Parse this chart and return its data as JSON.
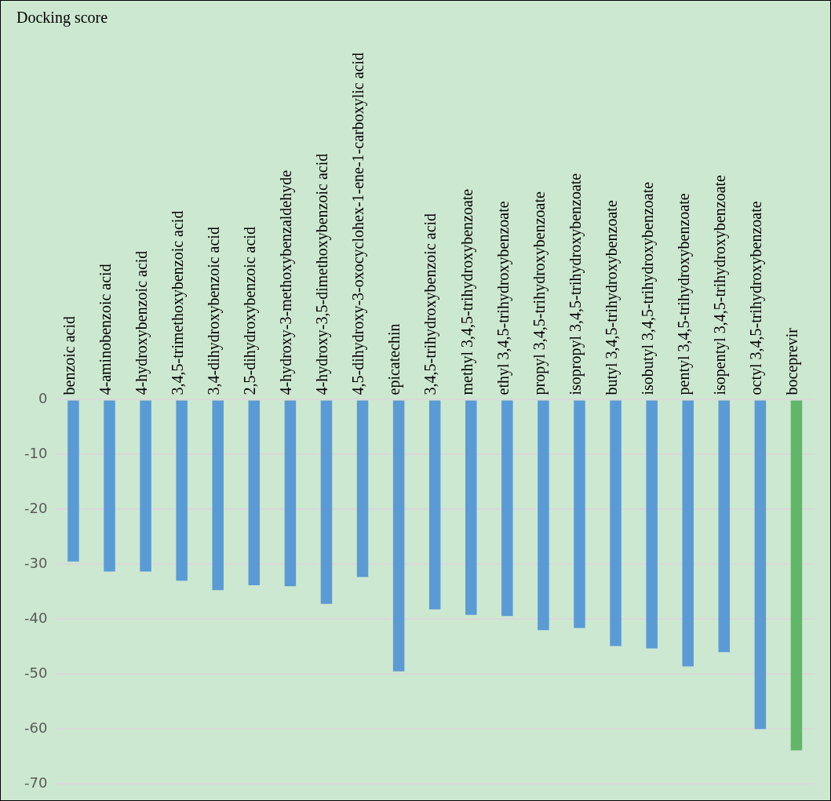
{
  "chart_data": {
    "type": "bar",
    "title": "Docking score",
    "categories": [
      "benzoic acid",
      "4-aminobenzoic acid",
      "4-hydroxybenzoic acid",
      "3,4,5-trimethoxybenzoic acid",
      "3,4-dihydroxybenzoic acid",
      "2,5-dihydroxybenzoic acid",
      "4-hydroxy-3-methoxybenzaldehyde",
      "4-hydroxy-3,5-dimethoxybenzoic acid",
      "4,5-dihydroxy-3-oxocyclohex-1-ene-1-carboxylic acid",
      "epicatechin",
      "3,4,5-trihydroxybenzoic acid",
      "methyl 3,4,5-trihydroxybenzoate",
      "ethyl 3,4,5-trihydroxybenzoate",
      "propyl 3,4,5-trihydroxybenzoate",
      "isopropyl 3,4,5-trihydroxybenzoate",
      "butyl 3,4,5-trihydroxybenzoate",
      "isobutyl 3,4,5-trihydroxybenzoate",
      "pentyl 3,4,5-trihydroxybenzoate",
      "isopentyl 3,4,5-trihydroxybenzoate",
      "octyl 3,4,5-trihydroxybenzoate",
      "boceprevir"
    ],
    "values": [
      -29.5,
      -31.3,
      -31.3,
      -33.0,
      -34.7,
      -33.8,
      -34.0,
      -37.2,
      -32.3,
      -49.5,
      -38.2,
      -39.2,
      -39.4,
      -42.0,
      -41.6,
      -44.9,
      -45.3,
      -48.6,
      -46.0,
      -60.0,
      -63.9
    ],
    "colors": [
      "#5b9bd5",
      "#5b9bd5",
      "#5b9bd5",
      "#5b9bd5",
      "#5b9bd5",
      "#5b9bd5",
      "#5b9bd5",
      "#5b9bd5",
      "#5b9bd5",
      "#5b9bd5",
      "#5b9bd5",
      "#5b9bd5",
      "#5b9bd5",
      "#5b9bd5",
      "#5b9bd5",
      "#5b9bd5",
      "#5b9bd5",
      "#5b9bd5",
      "#5b9bd5",
      "#5b9bd5",
      "#62b66a"
    ],
    "ylim": [
      -70,
      0
    ],
    "yticks": [
      0,
      -10,
      -20,
      -30,
      -40,
      -50,
      -60,
      -70
    ],
    "grid": "y"
  }
}
